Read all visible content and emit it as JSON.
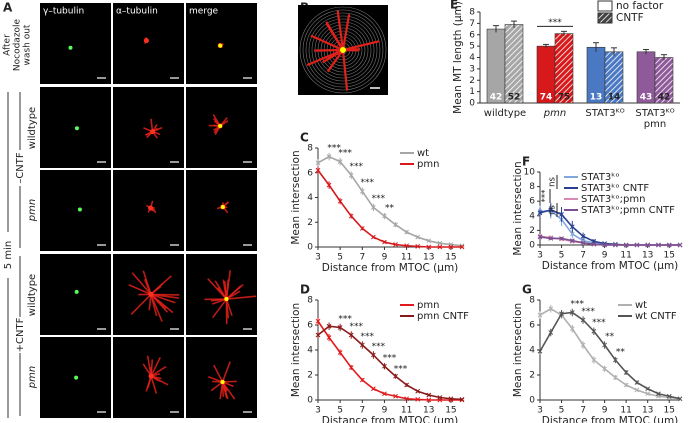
{
  "panel_a": {
    "letter": "A",
    "columns": [
      "γ–tubulin",
      "α–tubulin",
      "merge"
    ],
    "row_header": [
      "After",
      "Nocodazole",
      "wash out"
    ],
    "time": "5 min",
    "conditions": [
      "–CNTF",
      "+CNTF"
    ],
    "genotypes": [
      "wildtype",
      "pmn",
      "wildtype",
      "pmn"
    ]
  },
  "panel_b": {
    "letter": "B"
  },
  "chart_data": [
    {
      "type": "bar",
      "panel": "E",
      "ylabel": "Mean MT length (µm)",
      "categories": [
        "wildtype",
        "pmn",
        "STAT3ᴷᴼ",
        [
          "STAT3ᴷᴼ",
          "pmn"
        ]
      ],
      "category_annotations": [
        null,
        "***",
        null,
        null
      ],
      "colors": [
        "#a6a6a6",
        "#d7191c",
        "#4a78c2",
        "#8e5a9a"
      ],
      "series": [
        {
          "name": "no factor",
          "values": [
            6.5,
            5.0,
            4.9,
            4.5
          ],
          "errors": [
            0.3,
            0.15,
            0.4,
            0.2
          ],
          "n": [
            42,
            74,
            13,
            43
          ]
        },
        {
          "name": "CNTF",
          "hatch": true,
          "values": [
            6.9,
            6.1,
            4.5,
            4.0
          ],
          "errors": [
            0.3,
            0.2,
            0.35,
            0.25
          ],
          "n": [
            52,
            75,
            14,
            42
          ]
        }
      ],
      "ylim": [
        0,
        8
      ],
      "yticks": [
        0,
        1,
        2,
        3,
        4,
        5,
        6,
        7,
        8
      ],
      "legend": "upper right"
    },
    {
      "type": "line",
      "panel": "C",
      "ylabel": "Mean intersection",
      "xlabel": "Distance from MTOC (µm)",
      "x": [
        3,
        4,
        5,
        6,
        7,
        8,
        9,
        10,
        11,
        12,
        13,
        14,
        15,
        16
      ],
      "annotations": [
        null,
        "***",
        "***",
        "***",
        "***",
        "***",
        "**",
        null,
        null,
        null,
        null,
        null,
        null,
        null
      ],
      "series": [
        {
          "name": "wt",
          "color": "#a6a6a6",
          "values": [
            6.8,
            7.3,
            6.9,
            5.8,
            4.5,
            3.2,
            2.5,
            1.8,
            1.2,
            0.8,
            0.5,
            0.3,
            0.2,
            0.1
          ],
          "errors": [
            0.3,
            0.3,
            0.3,
            0.3,
            0.3,
            0.3,
            0.25,
            0.2,
            0.15,
            0.1,
            0.1,
            0.1,
            0.05,
            0.05
          ]
        },
        {
          "name": "pmn",
          "color": "#d7191c",
          "values": [
            6.2,
            5.0,
            3.7,
            2.5,
            1.5,
            0.8,
            0.4,
            0.2,
            0.1,
            0.05,
            0,
            0,
            0,
            0
          ],
          "errors": [
            0.3,
            0.3,
            0.25,
            0.2,
            0.15,
            0.1,
            0.1,
            0.05,
            0.05,
            0,
            0,
            0,
            0,
            0
          ]
        }
      ],
      "xlim": [
        3,
        16
      ],
      "xticks": [
        3,
        5,
        7,
        9,
        11,
        13,
        15
      ],
      "ylim": [
        0,
        8
      ],
      "yticks": [
        0,
        2,
        4,
        6,
        8
      ],
      "legend": "upper right"
    },
    {
      "type": "line",
      "panel": "D",
      "ylabel": "Mean intersection",
      "xlabel": "Distance from MTOC (µm)",
      "x": [
        3,
        4,
        5,
        6,
        7,
        8,
        9,
        10,
        11,
        12,
        13,
        14,
        15,
        16
      ],
      "annotations": [
        null,
        null,
        "***",
        "***",
        "***",
        "***",
        "***",
        "***",
        null,
        null,
        null,
        null,
        null,
        null
      ],
      "series": [
        {
          "name": "pmn",
          "color": "#e31a1c",
          "values": [
            6.3,
            5.0,
            3.8,
            2.6,
            1.6,
            0.9,
            0.5,
            0.3,
            0.1,
            0.05,
            0,
            0,
            0,
            0
          ],
          "errors": [
            0.3,
            0.3,
            0.25,
            0.2,
            0.15,
            0.1,
            0.1,
            0.05,
            0.05,
            0,
            0,
            0,
            0,
            0
          ]
        },
        {
          "name": "pmn CNTF",
          "color": "#8b1a1a",
          "values": [
            5.2,
            5.9,
            5.8,
            5.2,
            4.4,
            3.6,
            2.7,
            1.9,
            1.2,
            0.7,
            0.4,
            0.2,
            0.1,
            0.05
          ],
          "errors": [
            0.3,
            0.3,
            0.3,
            0.3,
            0.3,
            0.3,
            0.25,
            0.2,
            0.15,
            0.1,
            0.1,
            0.05,
            0.05,
            0
          ]
        }
      ],
      "xlim": [
        3,
        16
      ],
      "xticks": [
        3,
        5,
        7,
        9,
        11,
        13,
        15
      ],
      "ylim": [
        0,
        8
      ],
      "yticks": [
        0,
        2,
        4,
        6,
        8
      ],
      "legend": "upper right"
    },
    {
      "type": "line",
      "panel": "F",
      "ylabel": "Mean intersection",
      "xlabel": "Distance from MTOC (µm)",
      "x": [
        3,
        4,
        5,
        6,
        7,
        8,
        9,
        10,
        11,
        12,
        13,
        14,
        15,
        16
      ],
      "brackets": [
        "ns",
        "***",
        "ns"
      ],
      "series": [
        {
          "name": "STAT3ᵏᵒ",
          "color": "#7fa8dd",
          "values": [
            4.6,
            4.7,
            3.5,
            1.5,
            0.6,
            0.3,
            0.1,
            0,
            0,
            0,
            0,
            0,
            0,
            0
          ],
          "errors": [
            0.8,
            1.1,
            0.9,
            0.6,
            0.3,
            0.2,
            0.1,
            0,
            0,
            0,
            0,
            0,
            0,
            0
          ]
        },
        {
          "name": "STAT3ᵏᵒ CNTF",
          "color": "#2a3f8f",
          "values": [
            4.4,
            4.8,
            4.2,
            2.5,
            1.2,
            0.5,
            0.2,
            0.1,
            0,
            0,
            0,
            0,
            0,
            0
          ],
          "errors": [
            0.7,
            0.9,
            1.0,
            0.8,
            0.5,
            0.3,
            0.1,
            0.1,
            0,
            0,
            0,
            0,
            0,
            0
          ]
        },
        {
          "name": "STAT3ᵏᵒ;pmn",
          "color": "#d88ab5",
          "values": [
            1.2,
            1.0,
            0.8,
            0.5,
            0.3,
            0.1,
            0,
            0,
            0,
            0,
            0,
            0,
            0,
            0
          ],
          "errors": [
            0.3,
            0.3,
            0.2,
            0.2,
            0.1,
            0.1,
            0,
            0,
            0,
            0,
            0,
            0,
            0,
            0
          ]
        },
        {
          "name": "STAT3ᵏᵒ;pmn CNTF",
          "color": "#7b4f8f",
          "values": [
            1.1,
            0.9,
            0.9,
            0.6,
            0.3,
            0.1,
            0,
            0,
            0,
            0,
            0,
            0,
            0,
            0
          ],
          "errors": [
            0.3,
            0.2,
            0.2,
            0.2,
            0.1,
            0.1,
            0,
            0,
            0,
            0,
            0,
            0,
            0,
            0
          ]
        }
      ],
      "xlim": [
        3,
        16
      ],
      "xticks": [
        3,
        5,
        7,
        9,
        11,
        13,
        15
      ],
      "ylim": [
        0,
        10
      ],
      "yticks": [
        0,
        2,
        4,
        6,
        8,
        10
      ],
      "legend": "upper left"
    },
    {
      "type": "line",
      "panel": "G",
      "ylabel": "Mean intersection",
      "xlabel": "Distance from MTOC (µm)",
      "x": [
        3,
        4,
        5,
        6,
        7,
        8,
        9,
        10,
        11,
        12,
        13,
        14,
        15,
        16
      ],
      "annotations": [
        null,
        null,
        null,
        "***",
        "***",
        "***",
        "**",
        "**",
        null,
        null,
        null,
        null,
        null,
        null
      ],
      "series": [
        {
          "name": "wt",
          "color": "#b0b0b0",
          "values": [
            6.8,
            7.3,
            6.8,
            5.7,
            4.4,
            3.2,
            2.5,
            1.8,
            1.2,
            0.8,
            0.5,
            0.3,
            0.2,
            0.1
          ],
          "errors": [
            0.3,
            0.3,
            0.3,
            0.3,
            0.3,
            0.3,
            0.25,
            0.2,
            0.15,
            0.1,
            0.1,
            0.1,
            0.05,
            0.05
          ]
        },
        {
          "name": "wt CNTF",
          "color": "#555555",
          "values": [
            3.9,
            5.4,
            6.9,
            7.0,
            6.4,
            5.5,
            4.4,
            3.2,
            2.2,
            1.4,
            0.9,
            0.5,
            0.3,
            0.1
          ],
          "errors": [
            0.3,
            0.3,
            0.3,
            0.3,
            0.3,
            0.3,
            0.3,
            0.25,
            0.2,
            0.15,
            0.1,
            0.1,
            0.05,
            0.05
          ]
        }
      ],
      "xlim": [
        3,
        16
      ],
      "xticks": [
        3,
        5,
        7,
        9,
        11,
        13,
        15
      ],
      "ylim": [
        0,
        8
      ],
      "yticks": [
        0,
        2,
        4,
        6,
        8
      ],
      "legend": "upper right"
    }
  ]
}
